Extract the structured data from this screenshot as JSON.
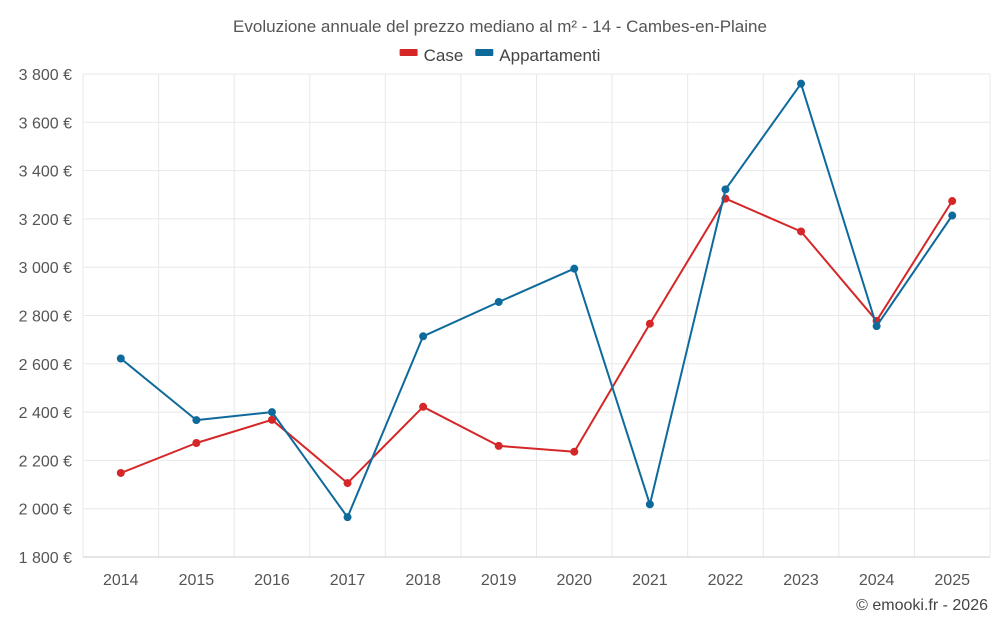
{
  "chart_data": {
    "type": "line",
    "title": "Evoluzione annuale del prezzo mediano al m² - 14 - Cambes-en-Plaine",
    "xlabel": "",
    "ylabel": "",
    "categories": [
      "2014",
      "2015",
      "2016",
      "2017",
      "2018",
      "2019",
      "2020",
      "2021",
      "2022",
      "2023",
      "2024",
      "2025"
    ],
    "ylim": [
      1800,
      3800
    ],
    "yticks": [
      1800,
      2000,
      2200,
      2400,
      2600,
      2800,
      3000,
      3200,
      3400,
      3600,
      3800
    ],
    "ytick_labels": [
      "1 800 €",
      "2 000 €",
      "2 200 €",
      "2 400 €",
      "2 600 €",
      "2 800 €",
      "3 000 €",
      "3 200 €",
      "3 400 €",
      "3 600 €",
      "3 800 €"
    ],
    "grid": true,
    "legend_position": "top-center",
    "series": [
      {
        "name": "Case",
        "color": "#d62728",
        "values": [
          2148,
          2272,
          2368,
          2106,
          2422,
          2260,
          2236,
          2766,
          3284,
          3148,
          2778,
          3274
        ]
      },
      {
        "name": "Appartamenti",
        "color": "#0f6a9c",
        "values": [
          2622,
          2367,
          2400,
          1965,
          2714,
          2856,
          2994,
          2018,
          3322,
          3760,
          2756,
          3214
        ]
      }
    ]
  },
  "credit": "© emooki.fr - 2026"
}
